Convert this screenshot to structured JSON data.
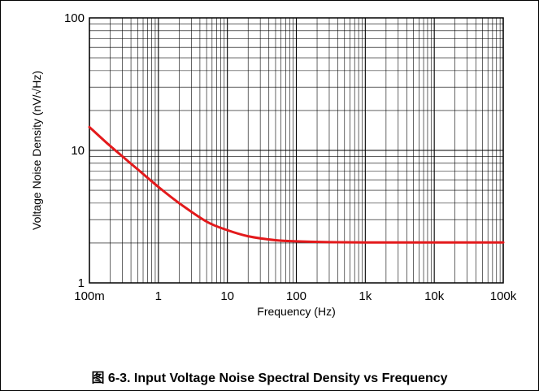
{
  "figure": {
    "caption": "图 6-3. Input Voltage Noise Spectral Density vs Frequency"
  },
  "chart_data": {
    "type": "line",
    "title": "",
    "xlabel": "Frequency (Hz)",
    "ylabel": "Voltage Noise Density (nV/√Hz)",
    "x_scale": "log",
    "y_scale": "log",
    "xlim": [
      0.1,
      100000
    ],
    "ylim": [
      1,
      100
    ],
    "grid": true,
    "x_ticks": [
      {
        "value": 0.1,
        "label": "100m"
      },
      {
        "value": 1,
        "label": "1"
      },
      {
        "value": 10,
        "label": "10"
      },
      {
        "value": 100,
        "label": "100"
      },
      {
        "value": 1000,
        "label": "1k"
      },
      {
        "value": 10000,
        "label": "10k"
      },
      {
        "value": 100000,
        "label": "100k"
      }
    ],
    "y_ticks": [
      {
        "value": 1,
        "label": "1"
      },
      {
        "value": 10,
        "label": "10"
      },
      {
        "value": 100,
        "label": "100"
      }
    ],
    "series": [
      {
        "color": "#e31a1c",
        "points": [
          {
            "x": 0.1,
            "y": 15
          },
          {
            "x": 0.2,
            "y": 10.8
          },
          {
            "x": 0.5,
            "y": 7.2
          },
          {
            "x": 1,
            "y": 5.3
          },
          {
            "x": 2,
            "y": 4.0
          },
          {
            "x": 5,
            "y": 2.9
          },
          {
            "x": 10,
            "y": 2.5
          },
          {
            "x": 20,
            "y": 2.25
          },
          {
            "x": 50,
            "y": 2.1
          },
          {
            "x": 100,
            "y": 2.06
          },
          {
            "x": 300,
            "y": 2.03
          },
          {
            "x": 1000,
            "y": 2.02
          },
          {
            "x": 10000,
            "y": 2.02
          },
          {
            "x": 100000,
            "y": 2.02
          }
        ]
      }
    ]
  }
}
